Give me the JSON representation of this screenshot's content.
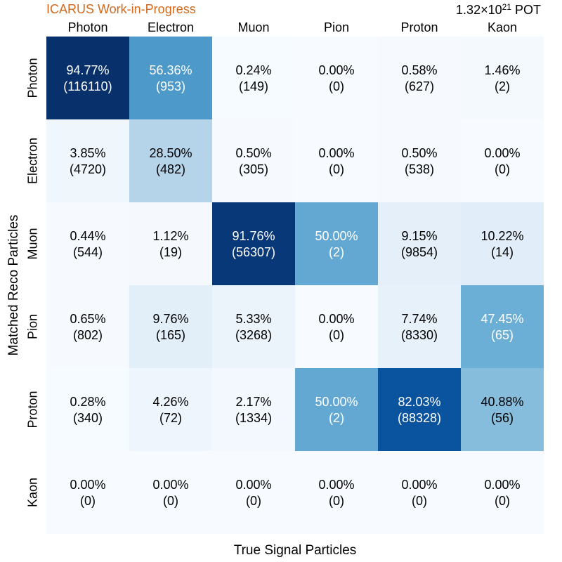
{
  "watermark": "ICARUS Work-in-Progress",
  "pot": {
    "prefix": "1.32×10",
    "exponent": "21",
    "suffix": " POT"
  },
  "colors": {
    "watermark": "#d2691e",
    "colormap": "Blues",
    "light_text": "#ffffff",
    "dark_text": "#000000"
  },
  "chart_data": {
    "type": "heatmap",
    "xlabel": "True Signal Particles",
    "ylabel": "Matched Reco Particles",
    "x_categories": [
      "Photon",
      "Electron",
      "Muon",
      "Pion",
      "Proton",
      "Kaon"
    ],
    "y_categories": [
      "Photon",
      "Electron",
      "Muon",
      "Pion",
      "Proton",
      "Kaon"
    ],
    "x_axis_position": "top",
    "colorbar": false,
    "grid": false,
    "values_percent": [
      [
        94.77,
        56.36,
        0.24,
        0.0,
        0.58,
        1.46
      ],
      [
        3.85,
        28.5,
        0.5,
        0.0,
        0.5,
        0.0
      ],
      [
        0.44,
        1.12,
        91.76,
        50.0,
        9.15,
        10.22
      ],
      [
        0.65,
        9.76,
        5.33,
        0.0,
        7.74,
        47.45
      ],
      [
        0.28,
        4.26,
        2.17,
        50.0,
        82.03,
        40.88
      ],
      [
        0.0,
        0.0,
        0.0,
        0.0,
        0.0,
        0.0
      ]
    ],
    "percent_labels": [
      [
        "94.77%",
        "56.36%",
        "0.24%",
        "0.00%",
        "0.58%",
        "1.46%"
      ],
      [
        "3.85%",
        "28.50%",
        "0.50%",
        "0.00%",
        "0.50%",
        "0.00%"
      ],
      [
        "0.44%",
        "1.12%",
        "91.76%",
        "50.00%",
        "9.15%",
        "10.22%"
      ],
      [
        "0.65%",
        "9.76%",
        "5.33%",
        "0.00%",
        "7.74%",
        "47.45%"
      ],
      [
        "0.28%",
        "4.26%",
        "2.17%",
        "50.00%",
        "82.03%",
        "40.88%"
      ],
      [
        "0.00%",
        "0.00%",
        "0.00%",
        "0.00%",
        "0.00%",
        "0.00%"
      ]
    ],
    "counts": [
      [
        116110,
        953,
        149,
        0,
        627,
        2
      ],
      [
        4720,
        482,
        305,
        0,
        538,
        0
      ],
      [
        544,
        19,
        56307,
        2,
        9854,
        14
      ],
      [
        802,
        165,
        3268,
        0,
        8330,
        65
      ],
      [
        340,
        72,
        1334,
        2,
        88328,
        56
      ],
      [
        0,
        0,
        0,
        0,
        0,
        0
      ]
    ]
  }
}
